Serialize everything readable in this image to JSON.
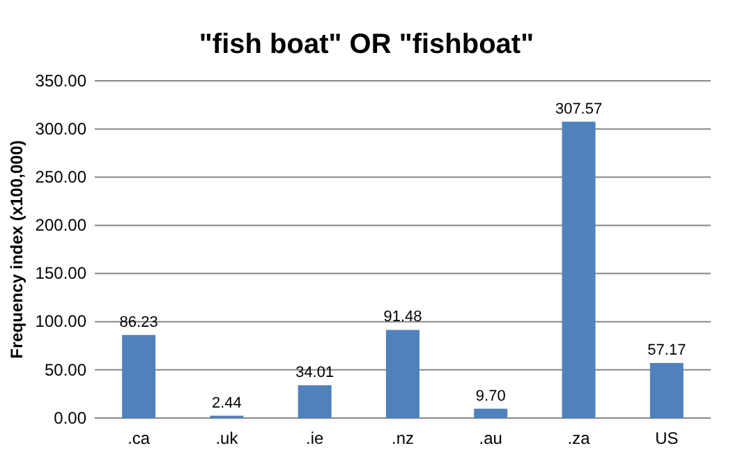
{
  "chart_data": {
    "type": "bar",
    "title": "\"fish boat\" OR \"fishboat\"",
    "ylabel": "Frequency index (x100,000)",
    "categories": [
      ".ca",
      ".uk",
      ".ie",
      ".nz",
      ".au",
      ".za",
      "US"
    ],
    "values": [
      86.23,
      2.44,
      34.01,
      91.48,
      9.7,
      307.57,
      57.17
    ],
    "value_labels": [
      "86.23",
      "2.44",
      "34.01",
      "91.48",
      "9.70",
      "307.57",
      "57.17"
    ],
    "color": "#4f81bd",
    "ylim": [
      0,
      350
    ],
    "yticks": [
      {
        "value": 0,
        "label": "0.00"
      },
      {
        "value": 50,
        "label": "50.00"
      },
      {
        "value": 100,
        "label": "100.00"
      },
      {
        "value": 150,
        "label": "150.00"
      },
      {
        "value": 200,
        "label": "200.00"
      },
      {
        "value": 250,
        "label": "250.00"
      },
      {
        "value": 300,
        "label": "300.00"
      },
      {
        "value": 350,
        "label": "350.00"
      }
    ],
    "grid": "y"
  }
}
